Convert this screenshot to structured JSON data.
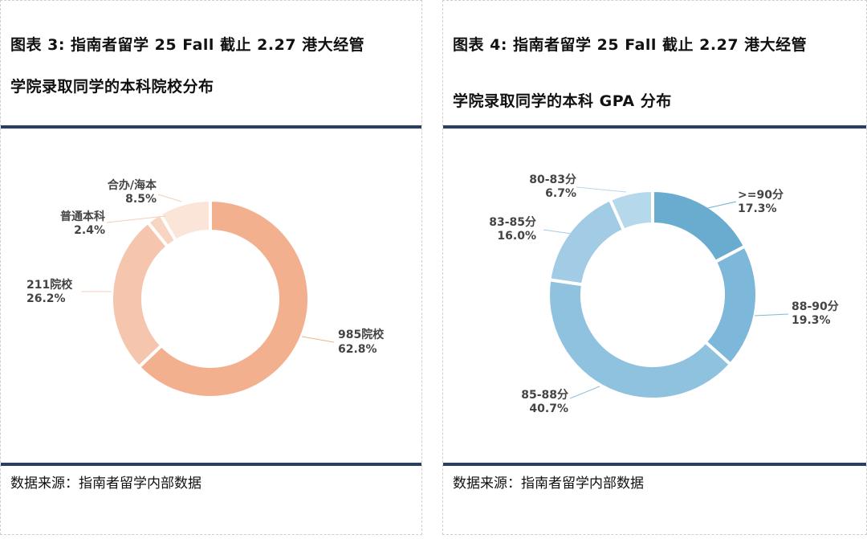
{
  "chart_data": [
    {
      "type": "pie",
      "donut": true,
      "title_line1": "图表 3: 指南者留学 25 Fall 截止 2.27 港大经管",
      "title_line2": "学院录取同学的本科院校分布",
      "source": "数据来源：指南者留学内部数据",
      "slices": [
        {
          "label": "985院校",
          "value": 62.8,
          "value_text": "62.8%",
          "color": "#f3b08f"
        },
        {
          "label": "211院校",
          "value": 26.2,
          "value_text": "26.2%",
          "color": "#f6c5ad"
        },
        {
          "label": "普通本科",
          "value": 2.4,
          "value_text": "2.4%",
          "color": "#f8d4c2"
        },
        {
          "label": "合办/海本",
          "value": 8.5,
          "value_text": "8.5%",
          "color": "#fbe5d8"
        }
      ]
    },
    {
      "type": "pie",
      "donut": true,
      "title_line1": "图表 4: 指南者留学 25 Fall 截止 2.27 港大经管",
      "title_line2": "学院录取同学的本科 GPA 分布",
      "source": "数据来源：指南者留学内部数据",
      "slices": [
        {
          "label": ">=90分",
          "value": 17.3,
          "value_text": "17.3%",
          "color": "#6aabd0"
        },
        {
          "label": "88-90分",
          "value": 19.3,
          "value_text": "19.3%",
          "color": "#7db7d9"
        },
        {
          "label": "85-88分",
          "value": 40.7,
          "value_text": "40.7%",
          "color": "#8fc2df"
        },
        {
          "label": "83-85分",
          "value": 16.0,
          "value_text": "16.0%",
          "color": "#a2cce5"
        },
        {
          "label": "80-83分",
          "value": 6.7,
          "value_text": "6.7%",
          "color": "#b6d8eb"
        }
      ]
    }
  ]
}
